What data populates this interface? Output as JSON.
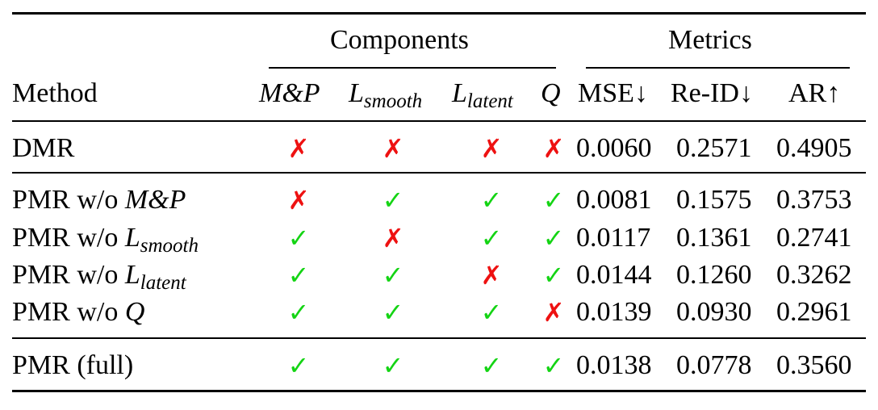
{
  "table": {
    "group_headers": {
      "components": "Components",
      "metrics": "Metrics"
    },
    "columns": {
      "method": "Method",
      "mp": "M&P",
      "lsmooth_base": "L",
      "lsmooth_sub": "smooth",
      "llatent_base": "L",
      "llatent_sub": "latent",
      "q": "Q",
      "mse": "MSE↓",
      "reid": "Re-ID↓",
      "ar": "AR↑"
    },
    "rows": [
      {
        "method_prefix": "DMR",
        "method_math": "",
        "method_sub": "",
        "components": [
          false,
          false,
          false,
          false
        ],
        "mse": "0.0060",
        "reid": "0.2571",
        "ar": "0.4905"
      },
      {
        "method_prefix": "PMR w/o ",
        "method_math": "M&P",
        "method_sub": "",
        "components": [
          false,
          true,
          true,
          true
        ],
        "mse": "0.0081",
        "reid": "0.1575",
        "ar": "0.3753"
      },
      {
        "method_prefix": "PMR w/o ",
        "method_math": "L",
        "method_sub": "smooth",
        "components": [
          true,
          false,
          true,
          true
        ],
        "mse": "0.0117",
        "reid": "0.1361",
        "ar": "0.2741"
      },
      {
        "method_prefix": "PMR w/o ",
        "method_math": "L",
        "method_sub": "latent",
        "components": [
          true,
          true,
          false,
          true
        ],
        "mse": "0.0144",
        "reid": "0.1260",
        "ar": "0.3262"
      },
      {
        "method_prefix": "PMR w/o ",
        "method_math": "Q",
        "method_sub": "",
        "components": [
          true,
          true,
          true,
          false
        ],
        "mse": "0.0139",
        "reid": "0.0930",
        "ar": "0.2961"
      },
      {
        "method_prefix": "PMR (full)",
        "method_math": "",
        "method_sub": "",
        "components": [
          true,
          true,
          true,
          true
        ],
        "mse": "0.0138",
        "reid": "0.0778",
        "ar": "0.3560"
      }
    ],
    "symbols": {
      "check": "✓",
      "cross": "✗"
    },
    "colors": {
      "check": "#14d414",
      "cross": "#ee1111"
    }
  }
}
